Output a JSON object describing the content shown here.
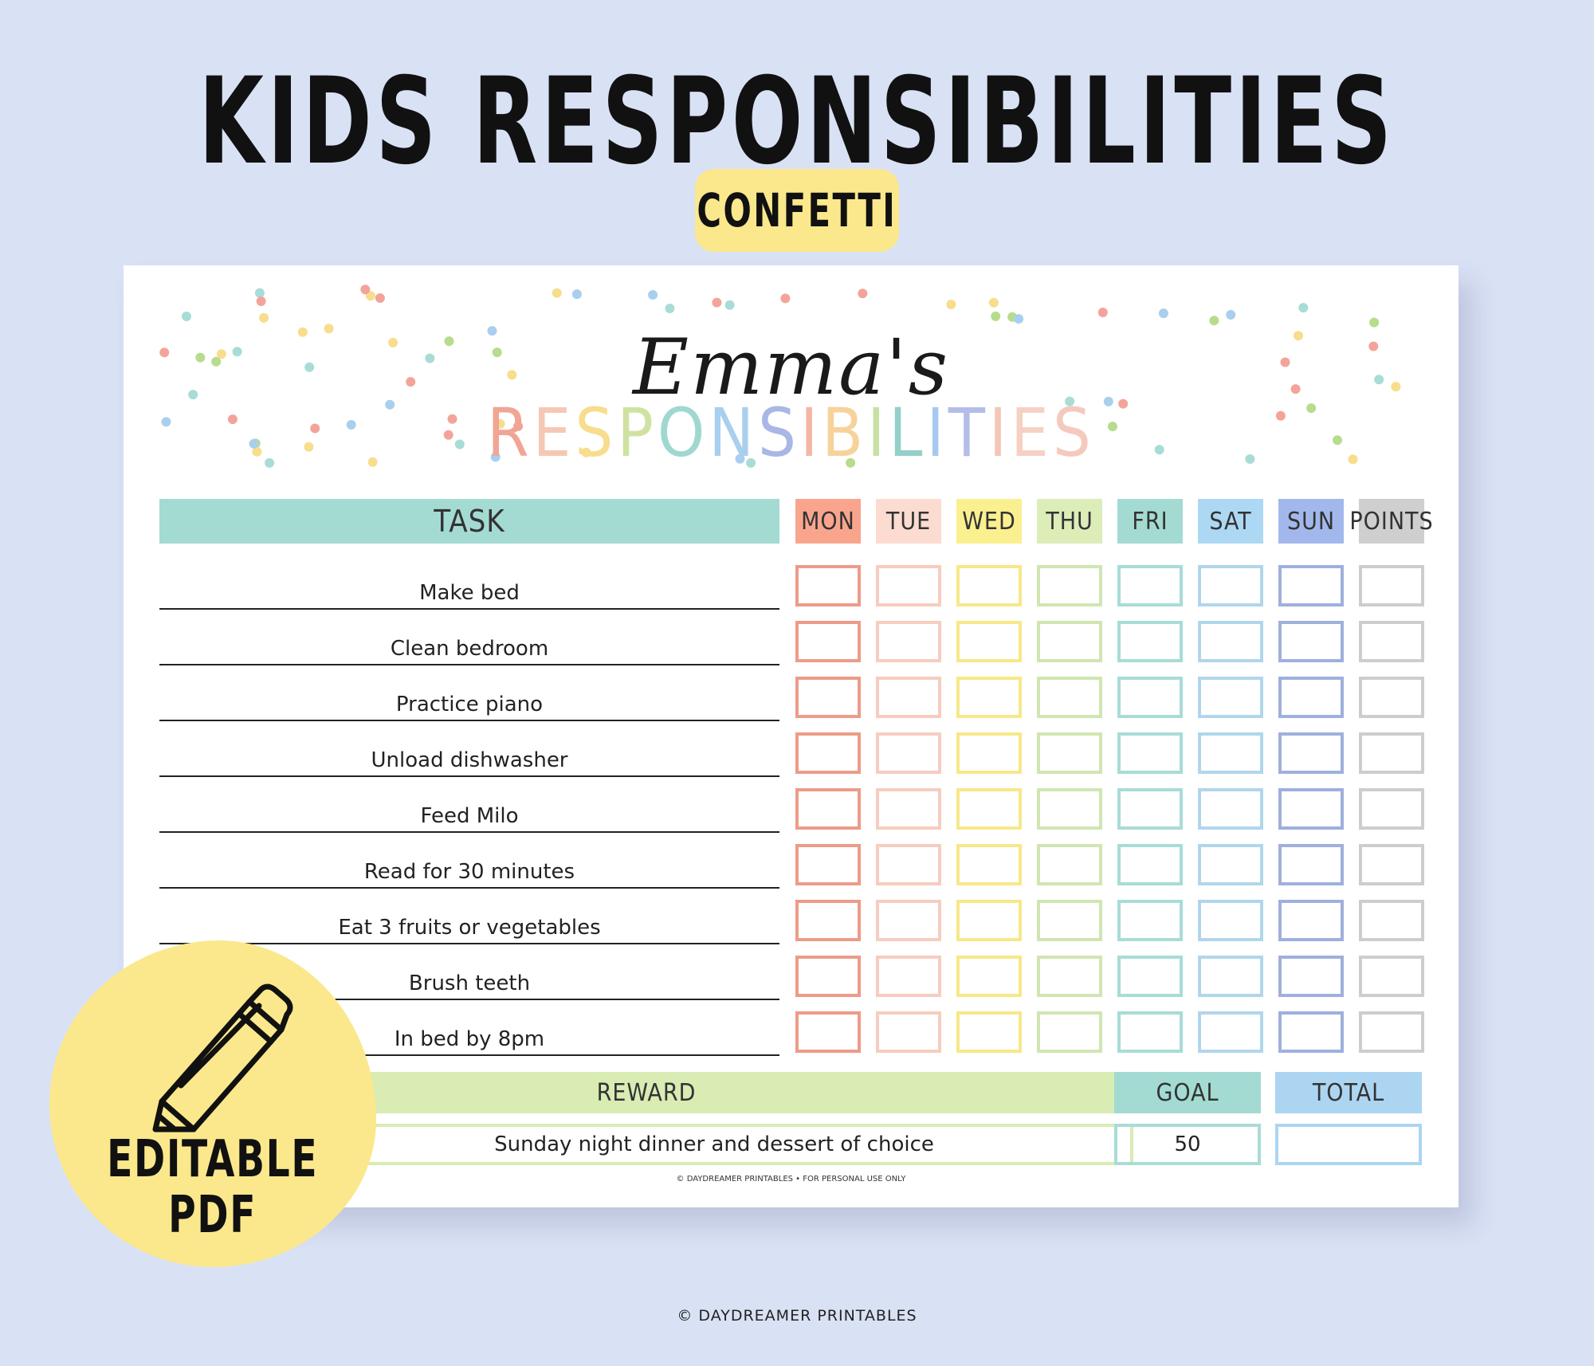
{
  "banner": {
    "title": "KIDS RESPONSIBILITIES",
    "variant": "CONFETTI"
  },
  "sheet": {
    "name": "Emma's",
    "heading": "RESPONSIBILITIES",
    "heading_colors": [
      "#f0a595",
      "#f6c8b4",
      "#f7dd8c",
      "#cfe2a2",
      "#9fd8cf",
      "#a9cfee",
      "#a9b7e6",
      "#f3b6a6",
      "#f7d29a",
      "#c7e1a5",
      "#93d0c9",
      "#a7c9ef",
      "#b3bde8",
      "#f3c6b5",
      "#f6d1c3",
      "#f5c9be"
    ],
    "task_header": "TASK",
    "days": [
      {
        "label": "MON",
        "fill": "#f9a58e",
        "border": "#ec9c88"
      },
      {
        "label": "TUE",
        "fill": "#fcdcd0",
        "border": "#f6cdbf"
      },
      {
        "label": "WED",
        "fill": "#fbf090",
        "border": "#f7e889"
      },
      {
        "label": "THU",
        "fill": "#dcedb8",
        "border": "#d0e6b2"
      },
      {
        "label": "FRI",
        "fill": "#a3dbd3",
        "border": "#a8dcd7"
      },
      {
        "label": "SAT",
        "fill": "#acd8f4",
        "border": "#b1d6ec"
      },
      {
        "label": "SUN",
        "fill": "#a2b8ec",
        "border": "#9fb0dd"
      },
      {
        "label": "POINTS",
        "fill": "#cfcfcf",
        "border": "#cdcdcd"
      }
    ],
    "tasks": [
      "Make bed",
      "Clean bedroom",
      "Practice piano",
      "Unload dishwasher",
      "Feed Milo",
      "Read for 30 minutes",
      "Eat 3 fruits or vegetables",
      "Brush teeth",
      "In bed by 8pm"
    ],
    "reward_header": "REWARD",
    "reward_value": "Sunday night dinner and dessert of choice",
    "goal_header": "GOAL",
    "goal_value": "50",
    "total_header": "TOTAL",
    "total_value": "",
    "copyright": "© DAYDREAMER PRINTABLES • FOR PERSONAL USE ONLY",
    "confetti_colors": [
      "#f3a49a",
      "#f7dd8c",
      "#a8dcd7",
      "#b7dc8c",
      "#a9cfee"
    ]
  },
  "badge_editable": {
    "icon": "pencil-icon",
    "line1": "EDITABLE",
    "line2": "PDF"
  },
  "footer": "© DAYDREAMER PRINTABLES",
  "colors": {
    "background": "#d9e1f5",
    "badge_yellow": "#fbe88c",
    "task_teal": "#a3dbd3",
    "reward_green": "#d8ecb4",
    "goal_teal": "#a3dbd3",
    "total_blue": "#acd5f2"
  }
}
